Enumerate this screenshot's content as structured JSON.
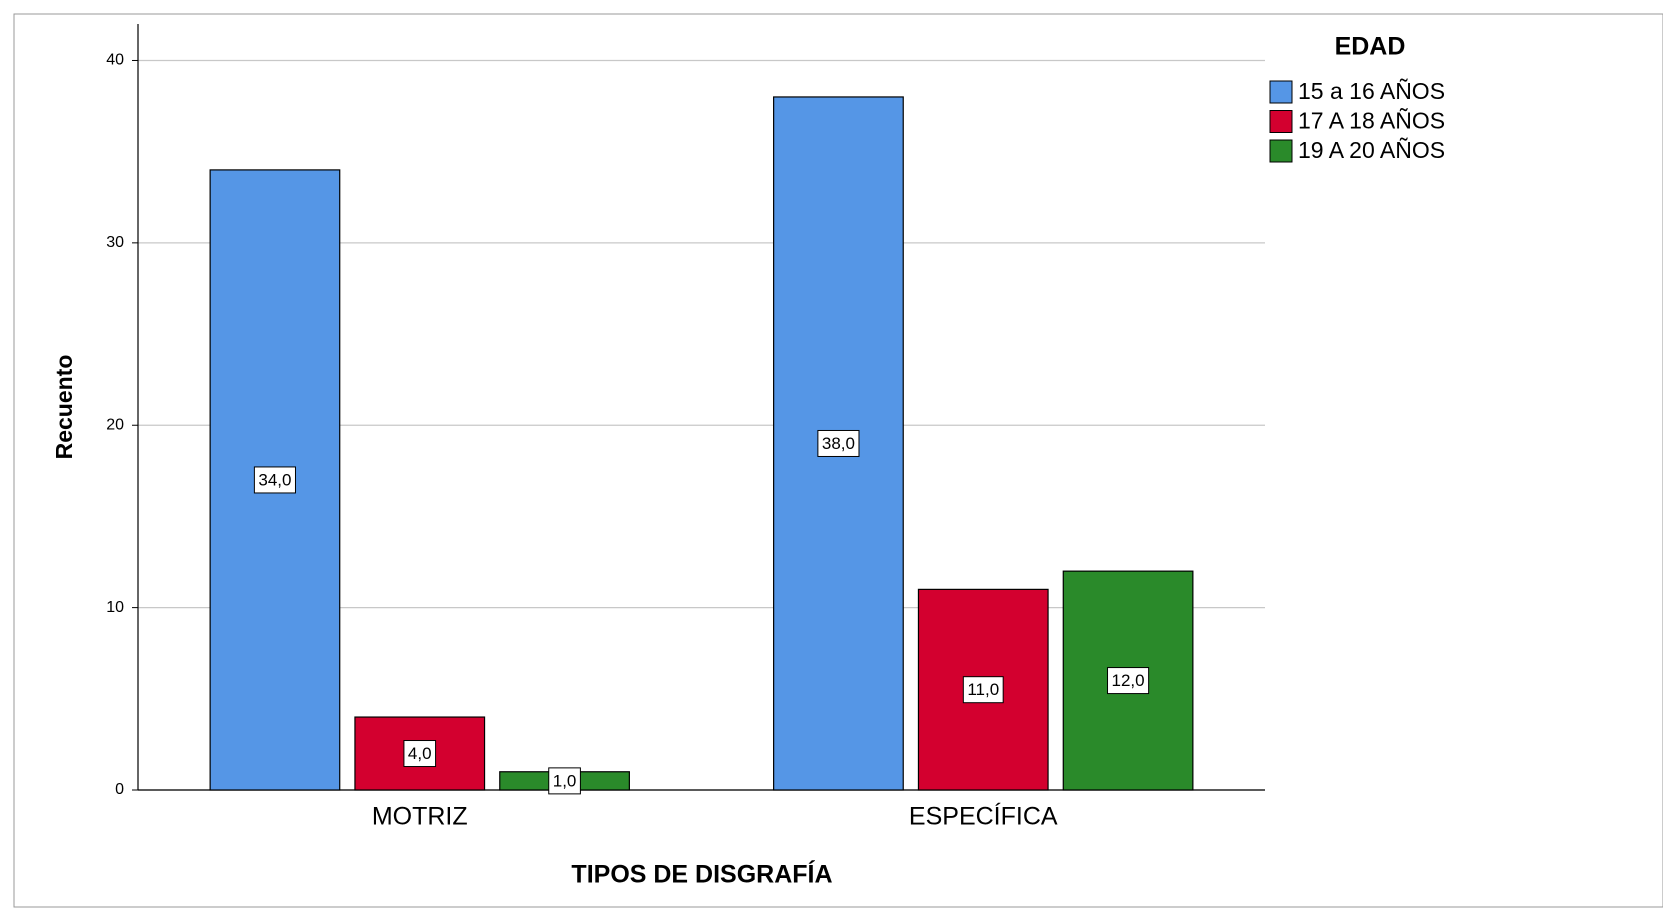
{
  "chart_data": {
    "type": "bar",
    "x_label": "TIPOS DE DISGRAFÍA",
    "y_label": "Recuento",
    "legend_title": "EDAD",
    "categories": [
      "MOTRIZ",
      "ESPECÍFICA"
    ],
    "series": [
      {
        "name": "15 a 16 AÑOS",
        "color": "#5596e6",
        "values": [
          34,
          38
        ],
        "value_labels": [
          "34,0",
          "38,0"
        ]
      },
      {
        "name": "17 A 18 AÑOS",
        "color": "#d3002f",
        "values": [
          4,
          11
        ],
        "value_labels": [
          "4,0",
          "11,0"
        ]
      },
      {
        "name": "19 A 20 AÑOS",
        "color": "#2a8a2a",
        "values": [
          1,
          12
        ],
        "value_labels": [
          "1,0",
          "12,0"
        ]
      }
    ],
    "ylim": [
      0,
      42
    ],
    "yticks": [
      0,
      10,
      20,
      30,
      40
    ],
    "grid": true,
    "legend": "right"
  }
}
